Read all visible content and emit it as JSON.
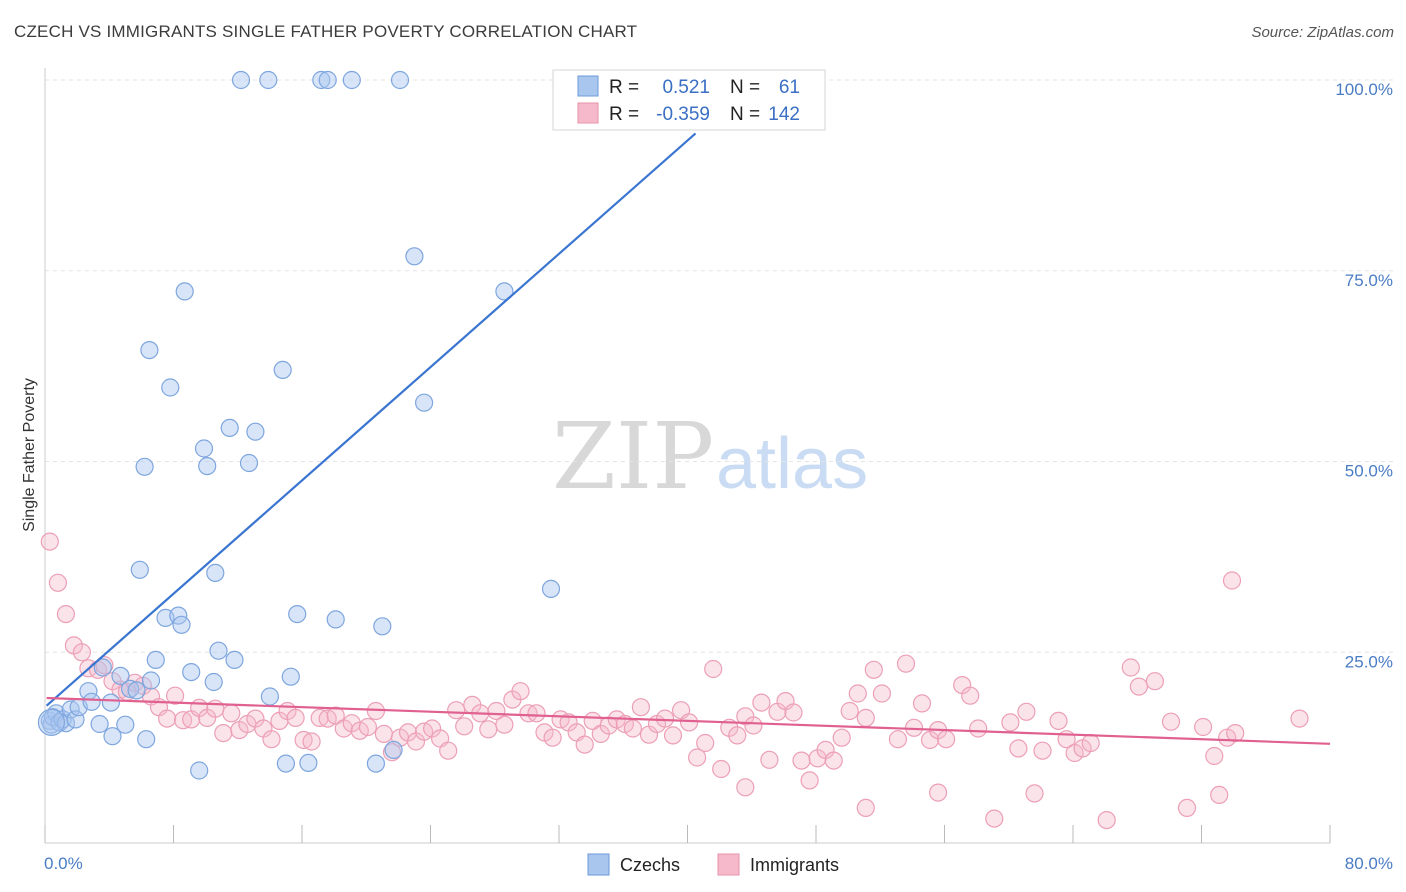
{
  "title": "CZECH VS IMMIGRANTS SINGLE FATHER POVERTY CORRELATION CHART",
  "source": "Source: ZipAtlas.com",
  "watermark": {
    "zip": "ZIP",
    "atlas": "atlas"
  },
  "legend": {
    "rows": [
      {
        "r_label": "R =",
        "r_value": "0.521",
        "n_label": "N =",
        "n_value": "61",
        "color": "#a9c6ef"
      },
      {
        "r_label": "R =",
        "r_value": "-0.359",
        "n_label": "N =",
        "n_value": "142",
        "color": "#f6b9cb"
      }
    ]
  },
  "bottom_legend": [
    {
      "label": "Czechs",
      "color": "#a9c6ef"
    },
    {
      "label": "Immigrants",
      "color": "#f6b9cb"
    }
  ],
  "chart_data": {
    "type": "scatter",
    "title": "CZECH VS IMMIGRANTS SINGLE FATHER POVERTY CORRELATION CHART",
    "xlabel": "",
    "ylabel": "Single Father Poverty",
    "xlim": [
      0,
      80
    ],
    "ylim": [
      0,
      105
    ],
    "x_tick_labels": [
      "0.0%",
      "80.0%"
    ],
    "y_tick_values": [
      25,
      50,
      75,
      100
    ],
    "y_tick_labels": [
      "25.0%",
      "50.0%",
      "75.0%",
      "100.0%"
    ],
    "grid": true,
    "legend_position": "top-center",
    "colors": {
      "czechs": "#3a75d0",
      "immigrants": "#e0608f"
    },
    "series": [
      {
        "name": "Czechs",
        "r": 0.521,
        "n": 61,
        "trend": {
          "x": [
            0.1,
            40.5
          ],
          "y": [
            18.0,
            93.0
          ]
        },
        "points": [
          [
            0.3,
            16.0
          ],
          [
            0.4,
            15.5
          ],
          [
            0.5,
            16.5
          ],
          [
            0.7,
            17.0
          ],
          [
            0.9,
            15.8
          ],
          [
            1.1,
            16.2
          ],
          [
            1.3,
            15.7
          ],
          [
            1.6,
            17.5
          ],
          [
            1.9,
            16.2
          ],
          [
            2.1,
            17.8
          ],
          [
            2.7,
            19.9
          ],
          [
            2.9,
            18.5
          ],
          [
            3.4,
            15.6
          ],
          [
            3.6,
            23.0
          ],
          [
            4.1,
            18.4
          ],
          [
            4.2,
            14.0
          ],
          [
            4.7,
            21.9
          ],
          [
            5.0,
            15.5
          ],
          [
            5.3,
            20.2
          ],
          [
            5.7,
            20.0
          ],
          [
            5.9,
            35.8
          ],
          [
            6.2,
            49.3
          ],
          [
            6.3,
            13.6
          ],
          [
            6.6,
            21.3
          ],
          [
            6.9,
            24.0
          ],
          [
            7.5,
            29.5
          ],
          [
            7.8,
            59.7
          ],
          [
            8.3,
            29.8
          ],
          [
            8.5,
            28.6
          ],
          [
            8.7,
            72.3
          ],
          [
            9.1,
            22.4
          ],
          [
            9.6,
            9.5
          ],
          [
            9.9,
            51.7
          ],
          [
            10.1,
            49.4
          ],
          [
            10.5,
            21.1
          ],
          [
            10.6,
            35.4
          ],
          [
            10.8,
            25.2
          ],
          [
            11.5,
            54.4
          ],
          [
            11.8,
            24.0
          ],
          [
            12.2,
            100.0
          ],
          [
            12.7,
            49.8
          ],
          [
            13.1,
            53.9
          ],
          [
            13.9,
            100.0
          ],
          [
            14.0,
            19.2
          ],
          [
            14.8,
            62.0
          ],
          [
            15.0,
            10.4
          ],
          [
            15.3,
            21.8
          ],
          [
            15.7,
            30.0
          ],
          [
            16.4,
            10.5
          ],
          [
            17.2,
            100.0
          ],
          [
            17.6,
            100.0
          ],
          [
            18.1,
            29.3
          ],
          [
            19.1,
            100.0
          ],
          [
            20.6,
            10.4
          ],
          [
            21.0,
            28.4
          ],
          [
            21.7,
            12.2
          ],
          [
            22.1,
            100.0
          ],
          [
            23.0,
            76.9
          ],
          [
            23.6,
            57.7
          ],
          [
            28.6,
            72.3
          ],
          [
            31.5,
            33.3
          ],
          [
            6.5,
            64.6
          ]
        ]
      },
      {
        "name": "Immigrants",
        "r": -0.359,
        "n": 142,
        "trend": {
          "x": [
            0.1,
            80.0
          ],
          "y": [
            19.0,
            13.0
          ]
        },
        "points": [
          [
            0.3,
            39.5
          ],
          [
            0.8,
            34.1
          ],
          [
            1.3,
            30.0
          ],
          [
            1.8,
            25.9
          ],
          [
            2.3,
            25.0
          ],
          [
            2.7,
            22.9
          ],
          [
            3.3,
            22.7
          ],
          [
            3.7,
            23.3
          ],
          [
            4.2,
            21.2
          ],
          [
            4.7,
            20.1
          ],
          [
            5.1,
            19.8
          ],
          [
            5.6,
            21.0
          ],
          [
            6.1,
            20.6
          ],
          [
            6.6,
            19.2
          ],
          [
            7.1,
            17.8
          ],
          [
            7.6,
            16.3
          ],
          [
            8.1,
            19.3
          ],
          [
            8.6,
            16.1
          ],
          [
            9.1,
            16.2
          ],
          [
            9.6,
            17.7
          ],
          [
            10.1,
            16.4
          ],
          [
            10.6,
            17.6
          ],
          [
            11.1,
            14.4
          ],
          [
            11.6,
            17.0
          ],
          [
            12.1,
            14.8
          ],
          [
            12.6,
            15.6
          ],
          [
            13.1,
            16.3
          ],
          [
            13.6,
            15.0
          ],
          [
            14.1,
            13.6
          ],
          [
            14.6,
            16.0
          ],
          [
            15.1,
            17.3
          ],
          [
            15.6,
            16.4
          ],
          [
            16.1,
            13.5
          ],
          [
            16.6,
            13.3
          ],
          [
            17.1,
            16.4
          ],
          [
            17.6,
            16.3
          ],
          [
            18.1,
            16.7
          ],
          [
            18.6,
            15.0
          ],
          [
            19.1,
            15.7
          ],
          [
            19.6,
            14.7
          ],
          [
            20.1,
            15.2
          ],
          [
            20.6,
            17.3
          ],
          [
            21.1,
            14.3
          ],
          [
            21.6,
            11.9
          ],
          [
            22.1,
            13.8
          ],
          [
            22.6,
            14.5
          ],
          [
            23.1,
            13.3
          ],
          [
            23.6,
            14.6
          ],
          [
            24.1,
            15.0
          ],
          [
            24.6,
            13.7
          ],
          [
            25.1,
            12.1
          ],
          [
            25.6,
            17.4
          ],
          [
            26.1,
            15.3
          ],
          [
            26.6,
            18.1
          ],
          [
            27.1,
            17.0
          ],
          [
            27.6,
            14.9
          ],
          [
            28.1,
            17.3
          ],
          [
            28.6,
            15.5
          ],
          [
            29.1,
            18.8
          ],
          [
            29.6,
            19.9
          ],
          [
            30.1,
            17.0
          ],
          [
            30.6,
            17.0
          ],
          [
            31.1,
            14.5
          ],
          [
            31.6,
            13.8
          ],
          [
            32.1,
            16.2
          ],
          [
            32.6,
            15.8
          ],
          [
            33.1,
            14.5
          ],
          [
            33.6,
            12.9
          ],
          [
            34.1,
            16.0
          ],
          [
            34.6,
            14.3
          ],
          [
            35.1,
            15.4
          ],
          [
            35.6,
            16.2
          ],
          [
            36.1,
            15.6
          ],
          [
            36.6,
            15.0
          ],
          [
            37.1,
            17.8
          ],
          [
            37.6,
            14.2
          ],
          [
            38.1,
            15.6
          ],
          [
            38.6,
            16.3
          ],
          [
            39.1,
            14.1
          ],
          [
            39.6,
            17.4
          ],
          [
            40.1,
            15.8
          ],
          [
            40.6,
            11.2
          ],
          [
            41.1,
            13.1
          ],
          [
            41.6,
            22.8
          ],
          [
            42.1,
            9.7
          ],
          [
            42.6,
            15.1
          ],
          [
            43.1,
            14.1
          ],
          [
            43.6,
            16.6
          ],
          [
            44.1,
            15.4
          ],
          [
            44.6,
            18.4
          ],
          [
            45.1,
            10.9
          ],
          [
            45.6,
            17.2
          ],
          [
            46.1,
            18.6
          ],
          [
            46.6,
            17.1
          ],
          [
            47.1,
            10.8
          ],
          [
            47.6,
            8.2
          ],
          [
            48.1,
            11.1
          ],
          [
            48.6,
            12.2
          ],
          [
            49.1,
            10.8
          ],
          [
            49.6,
            13.8
          ],
          [
            50.1,
            17.3
          ],
          [
            50.6,
            19.6
          ],
          [
            51.1,
            16.4
          ],
          [
            51.6,
            22.7
          ],
          [
            52.1,
            19.6
          ],
          [
            53.1,
            13.6
          ],
          [
            53.6,
            23.5
          ],
          [
            54.1,
            15.1
          ],
          [
            54.6,
            18.3
          ],
          [
            55.1,
            13.5
          ],
          [
            55.6,
            14.8
          ],
          [
            56.1,
            13.6
          ],
          [
            57.1,
            20.7
          ],
          [
            57.6,
            19.3
          ],
          [
            58.1,
            15.0
          ],
          [
            59.1,
            3.2
          ],
          [
            60.1,
            15.8
          ],
          [
            60.6,
            12.4
          ],
          [
            61.1,
            17.2
          ],
          [
            62.1,
            12.1
          ],
          [
            63.1,
            16.0
          ],
          [
            63.6,
            13.6
          ],
          [
            64.1,
            11.8
          ],
          [
            64.6,
            12.4
          ],
          [
            65.1,
            13.1
          ],
          [
            66.1,
            3.0
          ],
          [
            67.6,
            23.0
          ],
          [
            68.1,
            20.5
          ],
          [
            69.1,
            21.2
          ],
          [
            70.1,
            15.9
          ],
          [
            71.1,
            4.6
          ],
          [
            72.1,
            15.2
          ],
          [
            73.1,
            6.3
          ],
          [
            73.6,
            13.8
          ],
          [
            74.1,
            14.4
          ],
          [
            78.1,
            16.3
          ],
          [
            73.9,
            34.4
          ],
          [
            72.8,
            11.4
          ],
          [
            43.6,
            7.3
          ],
          [
            51.1,
            4.6
          ],
          [
            55.6,
            6.6
          ],
          [
            61.6,
            6.5
          ]
        ]
      }
    ]
  }
}
